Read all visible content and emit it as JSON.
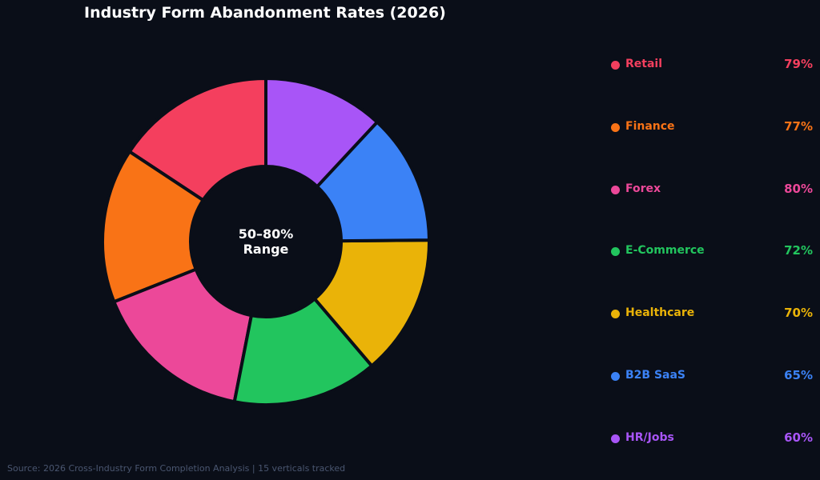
{
  "chart_data": {
    "type": "pie",
    "title": "Industry Form Abandonment Rates (2026)",
    "center_label_line1": "50–80%",
    "center_label_line2": "Range",
    "source": "Source: 2026 Cross-Industry Form Completion Analysis | 15 verticals tracked",
    "slices": [
      {
        "label": "Retail",
        "value": 79,
        "value_label": "79%",
        "color": "#f43f5e"
      },
      {
        "label": "Finance",
        "value": 77,
        "value_label": "77%",
        "color": "#f97316"
      },
      {
        "label": "Forex",
        "value": 80,
        "value_label": "80%",
        "color": "#ec4899"
      },
      {
        "label": "E-Commerce",
        "value": 72,
        "value_label": "72%",
        "color": "#22c55e"
      },
      {
        "label": "Healthcare",
        "value": 70,
        "value_label": "70%",
        "color": "#eab308"
      },
      {
        "label": "B2B SaaS",
        "value": 65,
        "value_label": "65%",
        "color": "#3b82f6"
      },
      {
        "label": "HR/Jobs",
        "value": 60,
        "value_label": "60%",
        "color": "#a855f7"
      }
    ],
    "background": "#0a0e18",
    "edge_color": "#0a0e18"
  }
}
